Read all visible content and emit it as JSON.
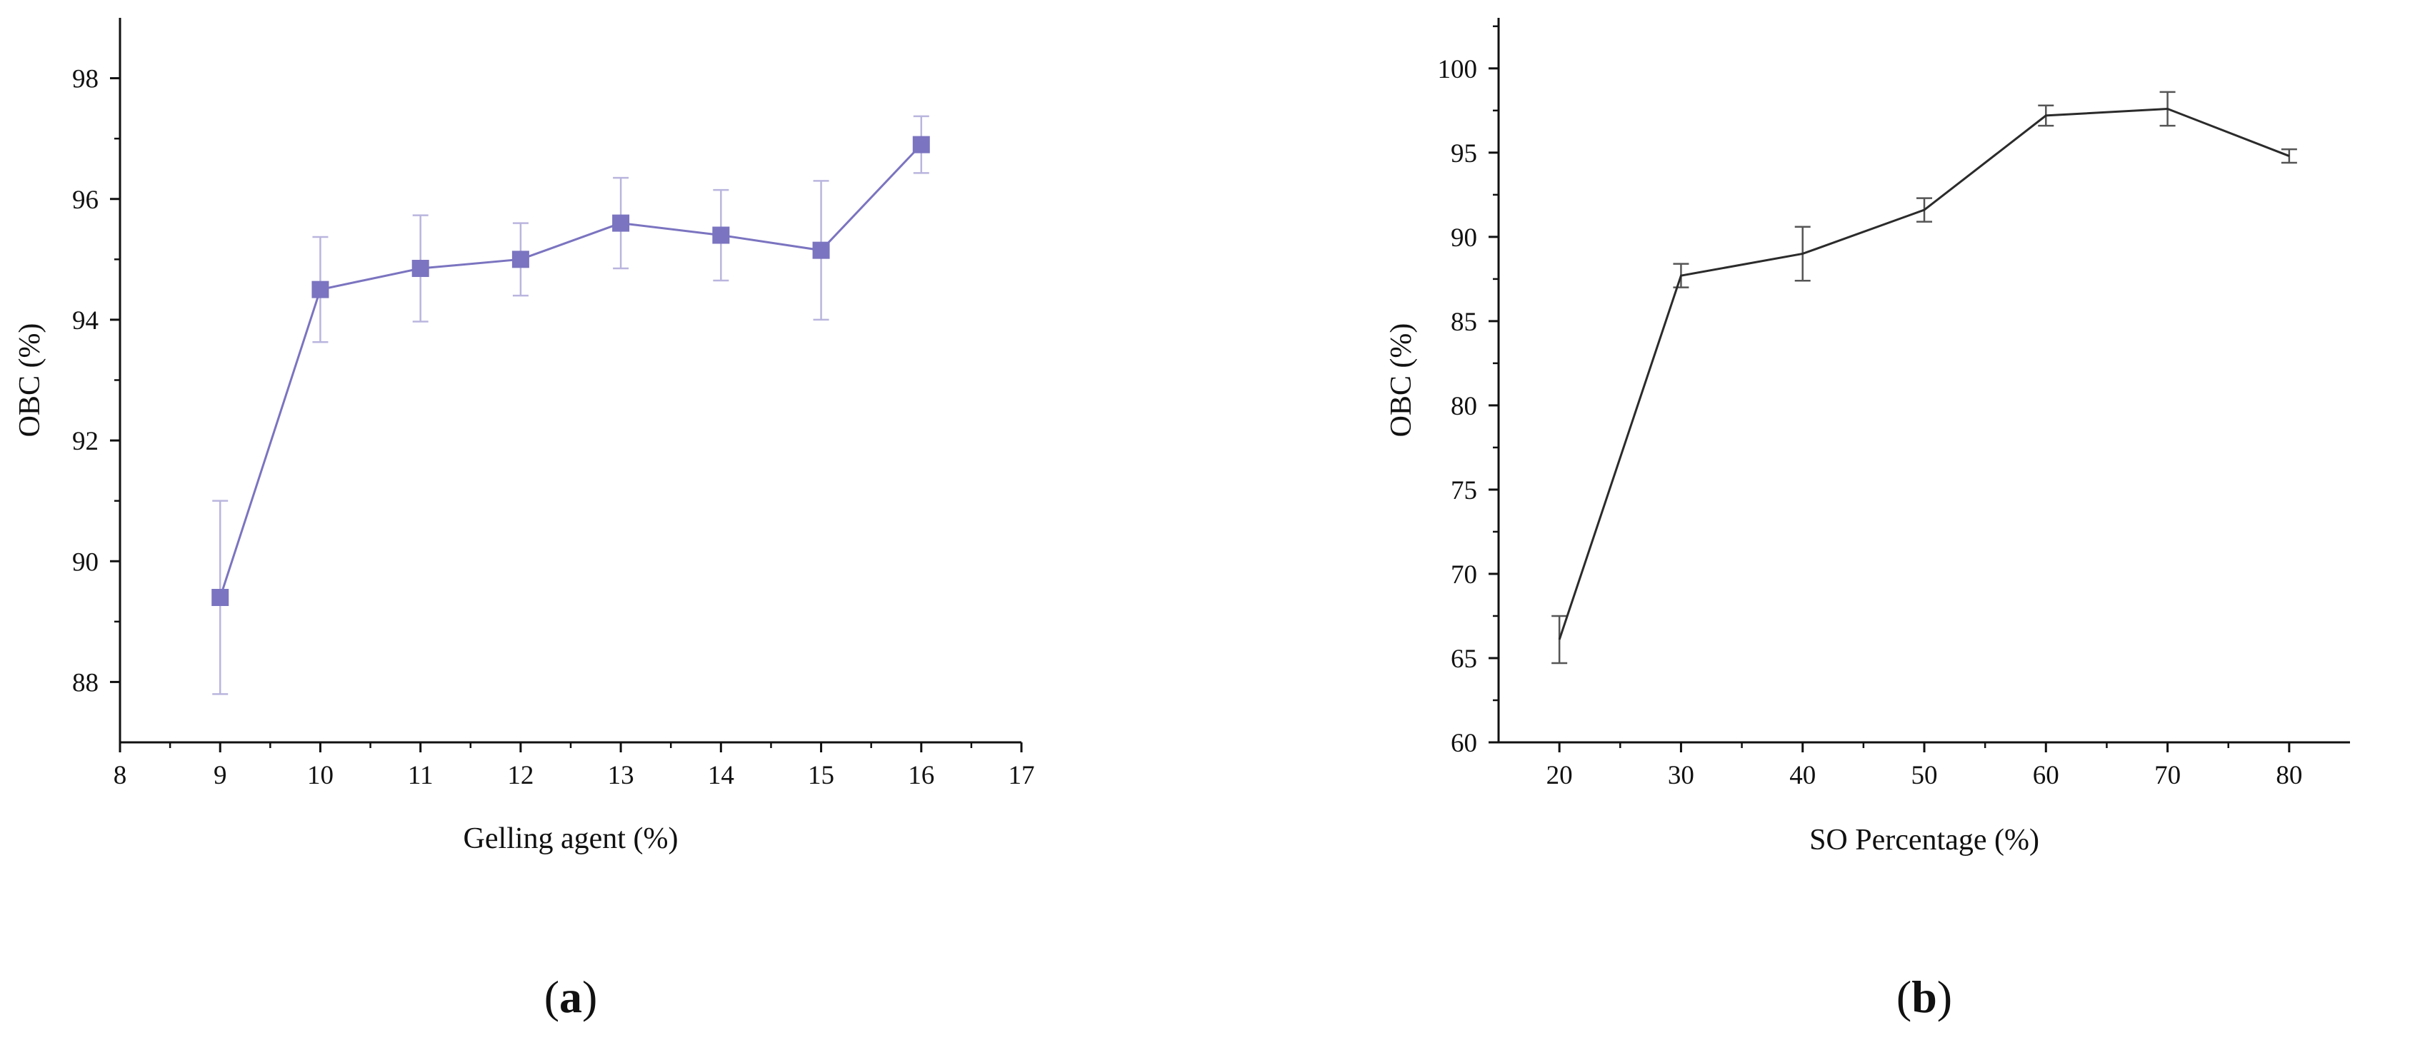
{
  "chart_data": [
    {
      "type": "line",
      "panel_label": "a",
      "xlabel": "Gelling agent (%)",
      "ylabel": "OBC (%)",
      "xlim": [
        8,
        17
      ],
      "ylim": [
        87,
        99
      ],
      "xticks": [
        "8",
        "9",
        "10",
        "11",
        "12",
        "13",
        "14",
        "15",
        "16",
        "17"
      ],
      "yticks": [
        "88",
        "90",
        "92",
        "94",
        "96",
        "98"
      ],
      "marker": "square",
      "grid": false,
      "series": [
        {
          "color": "#7B74C0",
          "error_color": "#B9B5DE",
          "x": [
            9,
            10,
            11,
            12,
            13,
            14,
            15,
            16
          ],
          "y": [
            89.4,
            94.5,
            94.85,
            95.0,
            95.6,
            95.4,
            95.15,
            96.9
          ],
          "error": [
            1.6,
            0.87,
            0.88,
            0.6,
            0.75,
            0.75,
            1.15,
            0.47
          ]
        }
      ]
    },
    {
      "type": "line",
      "panel_label": "b",
      "xlabel": "SO Percentage (%)",
      "ylabel": "OBC (%)",
      "xlim": [
        15,
        85
      ],
      "ylim": [
        60,
        103
      ],
      "xticks": [
        "20",
        "30",
        "40",
        "50",
        "60",
        "70",
        "80"
      ],
      "yticks": [
        "60",
        "65",
        "70",
        "75",
        "80",
        "85",
        "90",
        "95",
        "100"
      ],
      "marker": "none",
      "grid": false,
      "series": [
        {
          "color": "#2b2b2b",
          "error_color": "#555555",
          "x": [
            20,
            30,
            40,
            50,
            60,
            70,
            80
          ],
          "y": [
            66.1,
            87.7,
            89.0,
            91.6,
            97.2,
            97.6,
            94.8
          ],
          "error": [
            1.4,
            0.7,
            1.6,
            0.7,
            0.6,
            1.0,
            0.4
          ]
        }
      ]
    }
  ]
}
